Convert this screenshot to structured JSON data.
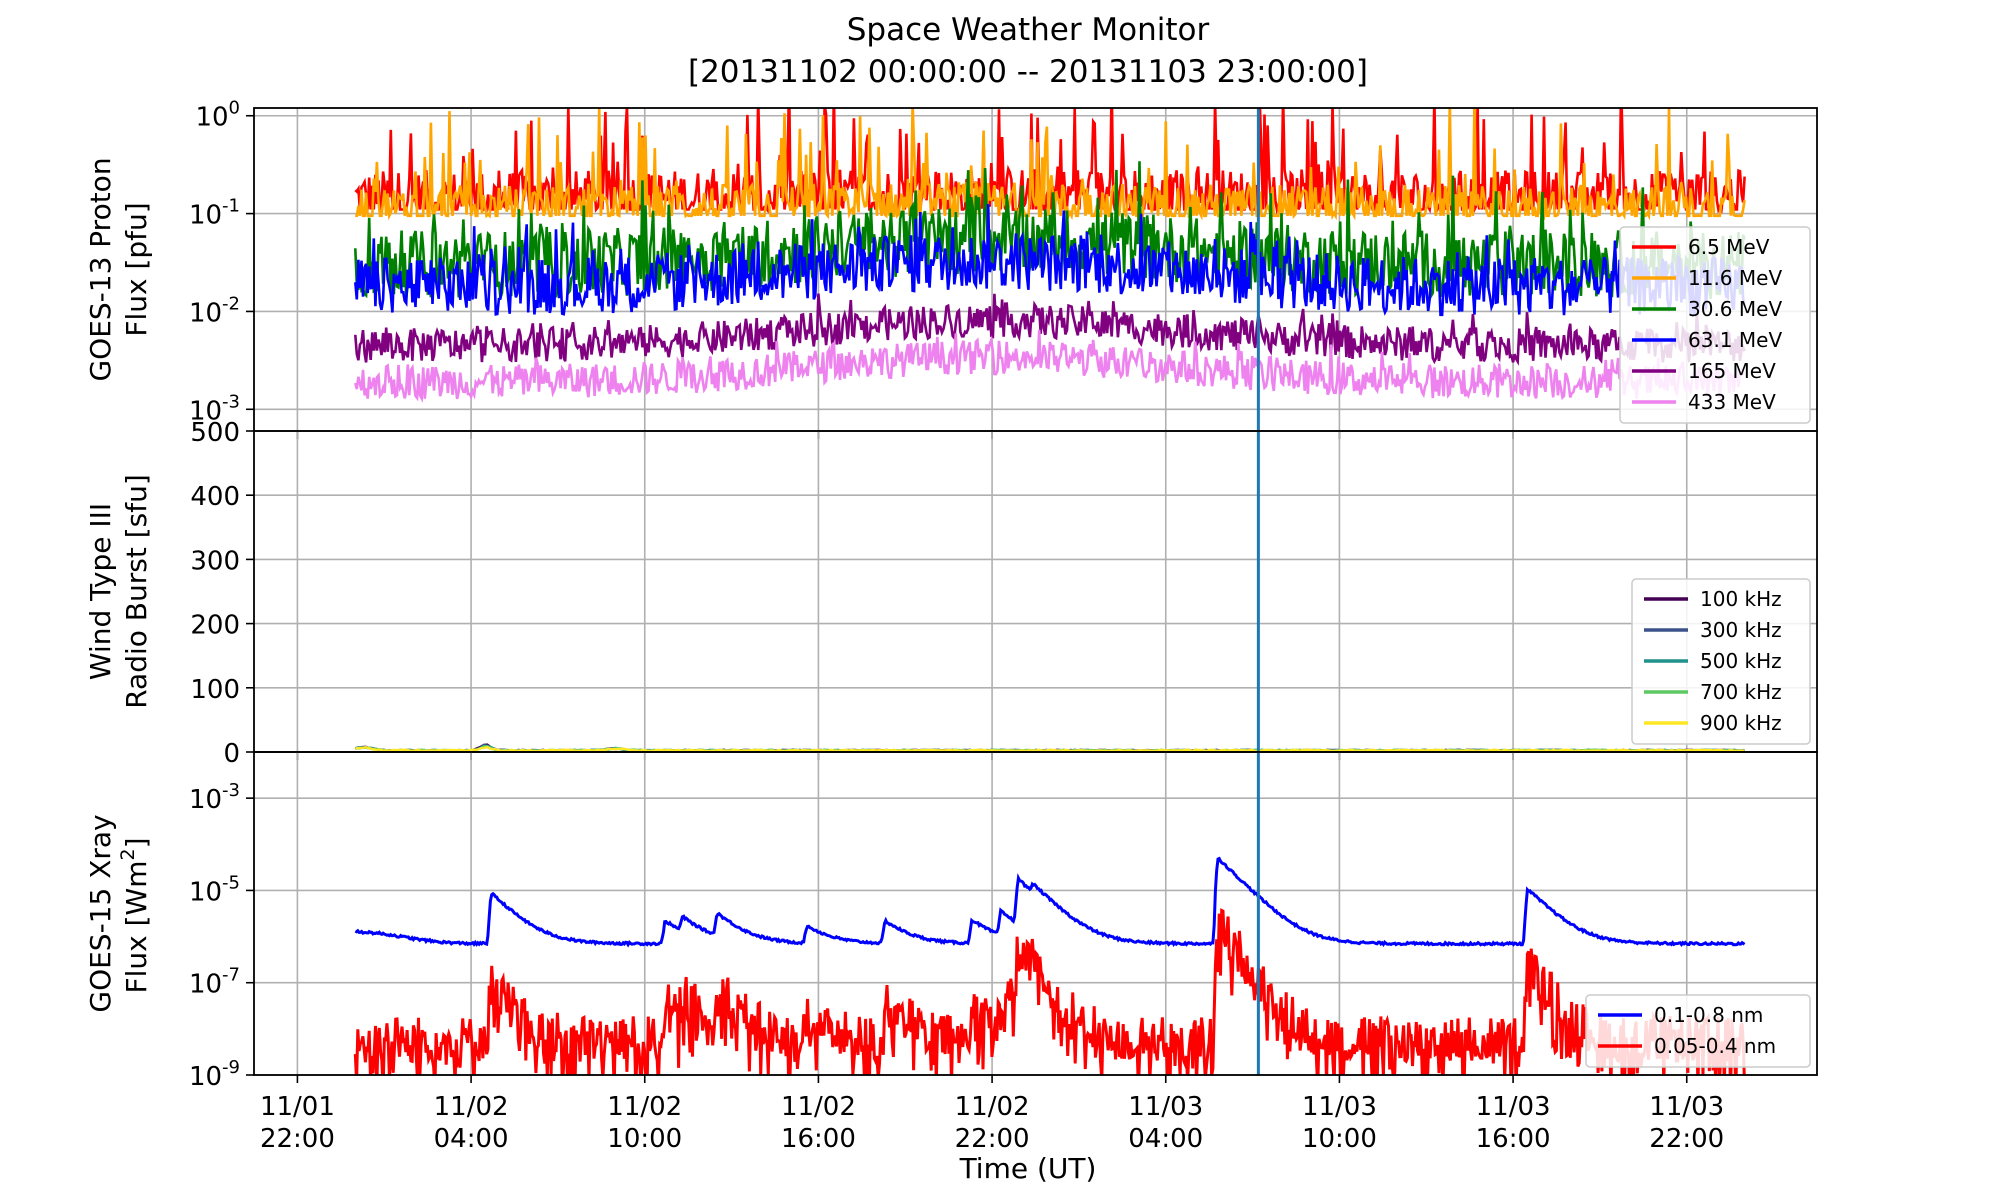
{
  "figure": {
    "title": "Space Weather Monitor",
    "subtitle": "[20131102 00:00:00 -- 20131103 23:00:00]",
    "xlabel": "Time (UT)",
    "x_ticks": [
      {
        "hours": 0,
        "line1": "11/01",
        "line2": "22:00"
      },
      {
        "hours": 6,
        "line1": "11/02",
        "line2": "04:00"
      },
      {
        "hours": 12,
        "line1": "11/02",
        "line2": "10:00"
      },
      {
        "hours": 18,
        "line1": "11/02",
        "line2": "16:00"
      },
      {
        "hours": 24,
        "line1": "11/02",
        "line2": "22:00"
      },
      {
        "hours": 30,
        "line1": "11/03",
        "line2": "04:00"
      },
      {
        "hours": 36,
        "line1": "11/03",
        "line2": "10:00"
      },
      {
        "hours": 42,
        "line1": "11/03",
        "line2": "16:00"
      },
      {
        "hours": 48,
        "line1": "11/03",
        "line2": "22:00"
      }
    ],
    "x_range_hours": [
      -1.5,
      52.5
    ],
    "data_range_hours": [
      2,
      50
    ],
    "marker_hours": 33.2,
    "marker_color": "#1f77b4"
  },
  "chart_data": [
    {
      "type": "line",
      "panel": "proton",
      "ylabel_lines": [
        "GOES-13 Proton",
        "Flux [pfu]"
      ],
      "yscale": "log",
      "ylim": [
        0.0006,
        1.2
      ],
      "yticks": [
        {
          "base": "10",
          "exp": "0",
          "value": 1
        },
        {
          "base": "10",
          "exp": "-1",
          "value": 0.1
        },
        {
          "base": "10",
          "exp": "-2",
          "value": 0.01
        },
        {
          "base": "10",
          "exp": "-3",
          "value": 0.001
        }
      ],
      "series": [
        {
          "name": "6.5 MeV",
          "color": "#ff0000",
          "base": 0.14,
          "jitter": 0.6,
          "spike": 0.5,
          "min": 0.11
        },
        {
          "name": "11.6 MeV",
          "color": "#ffa500",
          "base": 0.11,
          "jitter": 0.5,
          "spike": 0.45,
          "min": 0.095
        },
        {
          "name": "30.6 MeV",
          "color": "#008000",
          "base": 0.03,
          "jitter": 0.7,
          "spike": 0.3,
          "min": 0.006
        },
        {
          "name": "63.1 MeV",
          "color": "#0000ff",
          "base": 0.018,
          "jitter": 0.6,
          "spike": 0.2,
          "min": 0.004
        },
        {
          "name": "165 MeV",
          "color": "#800080",
          "base": 0.0045,
          "jitter": 0.35,
          "spike": 0.1,
          "min": 0.0015
        },
        {
          "name": "433 MeV",
          "color": "#ee82ee",
          "base": 0.0019,
          "jitter": 0.35,
          "spike": 0.1,
          "min": 0.0007
        }
      ],
      "legend_position": "right"
    },
    {
      "type": "line",
      "panel": "radio",
      "ylabel_lines": [
        "Wind Type III",
        "Radio Burst [sfu]"
      ],
      "yscale": "linear",
      "ylim": [
        0,
        500
      ],
      "yticks": [
        {
          "label": "0",
          "value": 0
        },
        {
          "label": "100",
          "value": 100
        },
        {
          "label": "200",
          "value": 200
        },
        {
          "label": "300",
          "value": 300
        },
        {
          "label": "400",
          "value": 400
        },
        {
          "label": "500",
          "value": 500
        }
      ],
      "series": [
        {
          "name": "100 kHz",
          "color": "#440154"
        },
        {
          "name": "300 kHz",
          "color": "#3b528b"
        },
        {
          "name": "500 kHz",
          "color": "#21918c"
        },
        {
          "name": "700 kHz",
          "color": "#5ec962"
        },
        {
          "name": "900 kHz",
          "color": "#fde725"
        }
      ],
      "values_note": "all near 0 with small bumps (max about 12)",
      "legend_position": "right"
    },
    {
      "type": "line",
      "panel": "xray",
      "ylabel_lines": [
        "GOES-15 Xray",
        "Flux [Wm",
        "2",
        "]"
      ],
      "yscale": "log",
      "ylim": [
        1e-09,
        0.01
      ],
      "yticks": [
        {
          "base": "10",
          "exp": "-3",
          "value": 0.001
        },
        {
          "base": "10",
          "exp": "-5",
          "value": 1e-05
        },
        {
          "base": "10",
          "exp": "-7",
          "value": 1e-07
        },
        {
          "base": "10",
          "exp": "-9",
          "value": 1e-09
        }
      ],
      "series": [
        {
          "name": "0.1-0.8 nm",
          "color": "#0000ff"
        },
        {
          "name": "0.05-0.4 nm",
          "color": "#ff0000"
        }
      ],
      "flares": [
        {
          "t": 6.7,
          "long": 8e-06,
          "short": 1e-07
        },
        {
          "t": 12.7,
          "long": 1.5e-06,
          "short": 3e-08
        },
        {
          "t": 13.3,
          "long": 1.4e-06,
          "short": 5e-08
        },
        {
          "t": 14.5,
          "long": 2.2e-06,
          "short": 1e-07
        },
        {
          "t": 17.6,
          "long": 1e-06,
          "short": 2e-08
        },
        {
          "t": 20.3,
          "long": 1.5e-06,
          "short": 5e-08
        },
        {
          "t": 23.3,
          "long": 1.6e-06,
          "short": 3e-08
        },
        {
          "t": 24.3,
          "long": 2.5e-06,
          "short": 1e-07
        },
        {
          "t": 24.9,
          "long": 1.6e-05,
          "short": 5e-07
        },
        {
          "t": 25.4,
          "long": 5e-06,
          "short": 1e-07
        },
        {
          "t": 31.8,
          "long": 5e-05,
          "short": 2e-06
        },
        {
          "t": 42.5,
          "long": 1e-05,
          "short": 2.5e-07
        }
      ],
      "long_base": 7e-07,
      "short_base": 6e-09,
      "legend_position": "lower right"
    }
  ]
}
